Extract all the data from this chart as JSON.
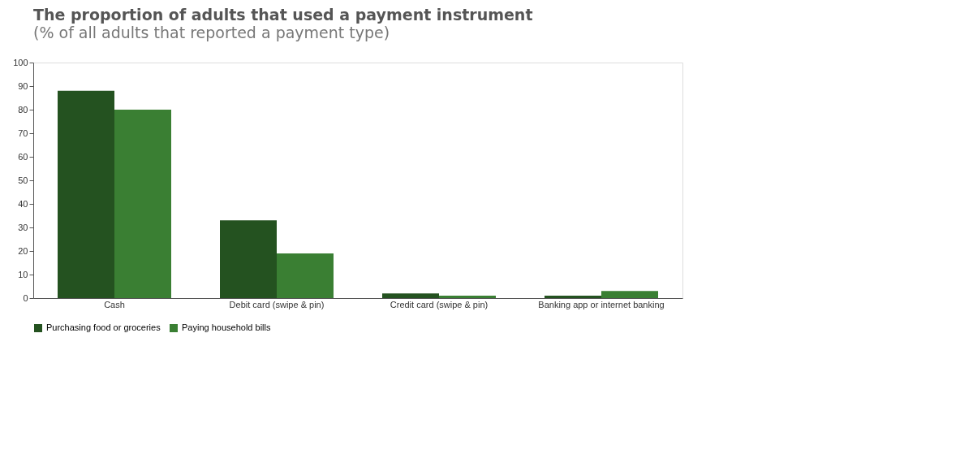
{
  "chart_data": {
    "type": "bar",
    "title": "The proportion of adults that used a payment instrument",
    "subtitle": "(% of all adults that reported a payment type)",
    "categories": [
      "Cash",
      "Debit card (swipe & pin)",
      "Credit card (swipe & pin)",
      "Banking app or internet banking"
    ],
    "series": [
      {
        "name": "Purchasing food or groceries",
        "color": "#245220",
        "values": [
          88,
          33,
          2,
          1
        ]
      },
      {
        "name": "Paying household bills",
        "color": "#3a7f33",
        "values": [
          80,
          19,
          1,
          3
        ]
      }
    ],
    "ylim": [
      0,
      100
    ],
    "yticks": [
      0,
      10,
      20,
      30,
      40,
      50,
      60,
      70,
      80,
      90,
      100
    ],
    "grid": false,
    "legend": "bottom"
  }
}
